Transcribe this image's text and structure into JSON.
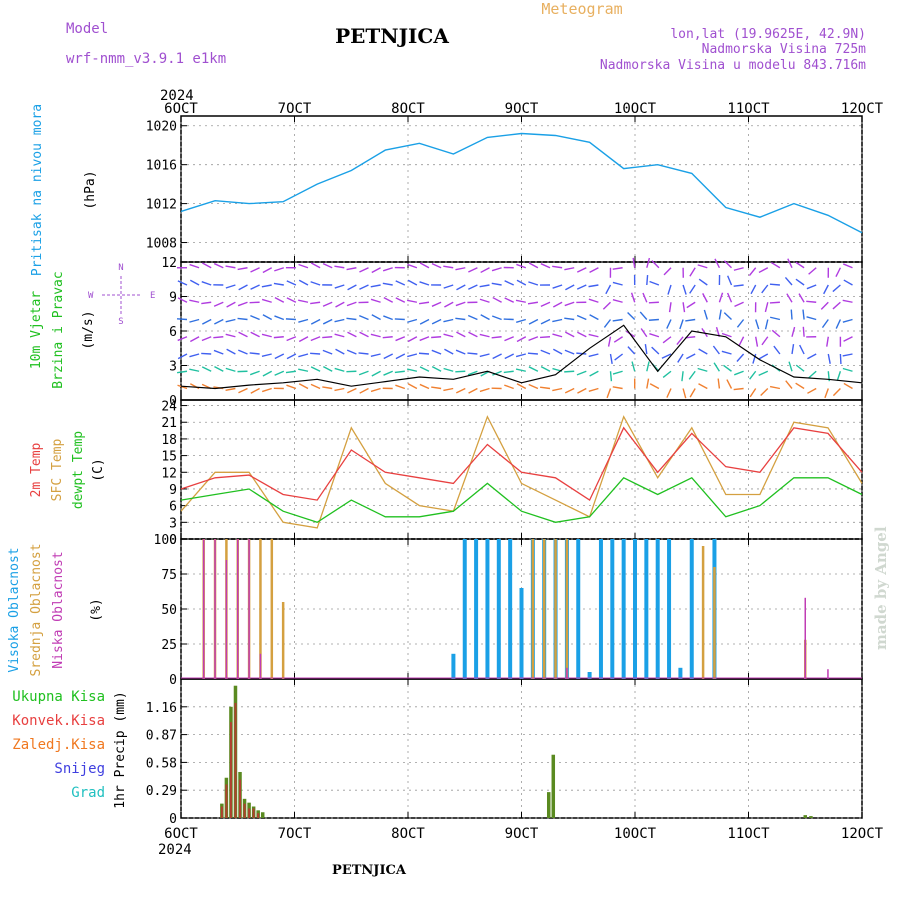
{
  "header": {
    "model_label": "Model",
    "model_name": "wrf-nmm_v3.9.1 e1km",
    "station": "PETNJICA",
    "product": "Meteogram",
    "coords": "lon,lat (19.9625E, 42.9N)",
    "elevation": "Nadmorska Visina 725m",
    "model_elevation": "Nadmorska Visina u modelu 843.716m",
    "footer_station": "PETNJICA",
    "watermark": "made by Angel"
  },
  "colors": {
    "pressure": "#1aa0e6",
    "temp2m": "#e84040",
    "sfc_temp": "#d4a040",
    "dewpoint": "#20c020",
    "high_cloud": "#1aa0e6",
    "mid_cloud": "#d4a040",
    "low_cloud": "#c03cb4",
    "total_precip": "#20c020",
    "conv_precip": "#e84040",
    "frozen_precip": "#f07820",
    "snow": "#4040e0",
    "hail": "#20c0c0",
    "wind_arrow": "#b03ce0",
    "wind_label": "#20c020",
    "header_purple": "#a050d0",
    "header_gold": "#e8b060"
  },
  "chart_data": [
    {
      "type": "line",
      "panel": "pressure",
      "ylabel": "Pritisak na nivou mora",
      "unit": "(hPa)",
      "ylim": [
        1006,
        1021
      ],
      "yticks": [
        1008,
        1012,
        1016,
        1020
      ],
      "grid": true,
      "x_start_label": "2024",
      "x_ticks": [
        "6OCT",
        "7OCT",
        "8OCT",
        "9OCT",
        "10OCT",
        "11OCT",
        "12OCT"
      ],
      "series": [
        {
          "x": [
            0,
            0.3,
            0.6,
            0.9,
            1.2,
            1.5,
            1.8,
            2.1,
            2.4,
            2.7,
            3.0,
            3.3,
            3.6,
            3.9,
            4.2,
            4.5,
            4.8,
            5.1,
            5.4,
            5.7,
            6.0
          ],
          "values": [
            1011.2,
            1012.3,
            1012.0,
            1012.2,
            1014.0,
            1015.4,
            1017.5,
            1018.2,
            1017.1,
            1018.8,
            1019.2,
            1019.0,
            1018.3,
            1015.6,
            1016.0,
            1015.1,
            1011.6,
            1010.6,
            1012.0,
            1010.8,
            1009.0
          ]
        }
      ]
    },
    {
      "type": "line",
      "panel": "wind",
      "ylabel": [
        "10m Vjetar",
        "Brzina i Pravac"
      ],
      "unit": "(m/s)",
      "compass": [
        "N",
        "W",
        "E",
        "S"
      ],
      "ylim": [
        0,
        12
      ],
      "yticks": [
        0,
        3,
        6,
        9,
        12
      ],
      "grid": true,
      "series": [
        {
          "x": [
            0,
            0.3,
            0.6,
            0.9,
            1.2,
            1.5,
            1.8,
            2.1,
            2.4,
            2.7,
            3.0,
            3.3,
            3.6,
            3.9,
            4.2,
            4.5,
            4.8,
            5.1,
            5.4,
            5.7,
            6.0
          ],
          "values": [
            1.2,
            1.0,
            1.3,
            1.5,
            1.8,
            1.2,
            1.6,
            2.0,
            1.8,
            2.5,
            1.5,
            2.2,
            4.5,
            6.5,
            2.5,
            6.0,
            5.5,
            3.5,
            2.0,
            1.8,
            1.5
          ]
        }
      ]
    },
    {
      "type": "line",
      "panel": "temperature",
      "ylabel": [
        "2m Temp",
        "SFC Temp",
        "dewpt Temp"
      ],
      "unit": "(C)",
      "ylim": [
        0,
        25
      ],
      "yticks": [
        0,
        3,
        6,
        9,
        12,
        15,
        18,
        21,
        24
      ],
      "grid": true,
      "series": [
        {
          "name": "2m Temp",
          "x": [
            0,
            0.3,
            0.6,
            0.9,
            1.2,
            1.5,
            1.8,
            2.1,
            2.4,
            2.7,
            3.0,
            3.3,
            3.6,
            3.9,
            4.2,
            4.5,
            4.8,
            5.1,
            5.4,
            5.7,
            6.0
          ],
          "values": [
            9,
            11,
            11.5,
            8,
            7,
            16,
            12,
            11,
            10,
            17,
            12,
            11,
            7,
            20,
            12,
            19,
            13,
            12,
            20,
            19,
            12
          ]
        },
        {
          "name": "SFC Temp",
          "x": [
            0,
            0.3,
            0.6,
            0.9,
            1.2,
            1.5,
            1.8,
            2.1,
            2.4,
            2.7,
            3.0,
            3.3,
            3.6,
            3.9,
            4.2,
            4.5,
            4.8,
            5.1,
            5.4,
            5.7,
            6.0
          ],
          "values": [
            5,
            12,
            12,
            3,
            2,
            20,
            10,
            6,
            5,
            22,
            10,
            7,
            4,
            22,
            11,
            20,
            8,
            8,
            21,
            20,
            10
          ]
        },
        {
          "name": "dewpt Temp",
          "x": [
            0,
            0.3,
            0.6,
            0.9,
            1.2,
            1.5,
            1.8,
            2.1,
            2.4,
            2.7,
            3.0,
            3.3,
            3.6,
            3.9,
            4.2,
            4.5,
            4.8,
            5.1,
            5.4,
            5.7,
            6.0
          ],
          "values": [
            7,
            8,
            9,
            5,
            3,
            7,
            4,
            4,
            5,
            10,
            5,
            3,
            4,
            11,
            8,
            11,
            4,
            6,
            11,
            11,
            8
          ]
        }
      ]
    },
    {
      "type": "bar",
      "panel": "clouds",
      "ylabel": [
        "Visoka Oblacnost",
        "Srednja Oblacnost",
        "Niska Oblacnost"
      ],
      "unit": "(%)",
      "ylim": [
        0,
        100
      ],
      "yticks": [
        0,
        25,
        50,
        75,
        100
      ],
      "grid": true,
      "series": [
        {
          "name": "Visoka Oblacnost",
          "x": [
            2.4,
            2.5,
            2.6,
            2.7,
            2.8,
            2.9,
            3.0,
            3.1,
            3.2,
            3.3,
            3.4,
            3.5,
            3.6,
            3.7,
            3.8,
            3.9,
            4.0,
            4.1,
            4.2,
            4.3,
            4.4,
            4.5,
            4.6,
            4.7,
            4.8,
            4.9,
            5.0
          ],
          "values": [
            18,
            100,
            100,
            100,
            100,
            100,
            65,
            100,
            100,
            100,
            100,
            100,
            5,
            100,
            100,
            100,
            100,
            100,
            100,
            100,
            8,
            100,
            0,
            100,
            0,
            0,
            0
          ]
        },
        {
          "name": "Srednja Oblacnost",
          "x": [
            0.2,
            0.3,
            0.4,
            0.5,
            0.6,
            0.7,
            0.8,
            0.9,
            3.1,
            3.2,
            3.3,
            3.4,
            4.6,
            4.7,
            5.5
          ],
          "values": [
            100,
            100,
            100,
            100,
            100,
            100,
            100,
            55,
            100,
            100,
            100,
            100,
            95,
            80,
            28
          ]
        },
        {
          "name": "Niska Oblacnost",
          "x": [
            0.2,
            0.3,
            0.4,
            0.5,
            0.6,
            0.7,
            3.4,
            5.5,
            5.7
          ],
          "values": [
            100,
            100,
            85,
            100,
            100,
            18,
            8,
            58,
            7
          ]
        }
      ]
    },
    {
      "type": "bar",
      "panel": "precipitation",
      "ylabel": "1hr Precip (mm)",
      "legend": [
        "Ukupna Kisa",
        "Konvek.Kisa",
        "Zaledj.Kisa",
        "Snijeg",
        "Grad"
      ],
      "ylim": [
        0,
        1.45
      ],
      "yticks": [
        0,
        0.29,
        0.58,
        0.87,
        1.16
      ],
      "grid": true,
      "series": [
        {
          "name": "Ukupna Kisa",
          "x": [
            0.36,
            0.4,
            0.44,
            0.48,
            0.52,
            0.56,
            0.6,
            0.64,
            0.68,
            0.72,
            3.24,
            3.28,
            5.5,
            5.55
          ],
          "values": [
            0.15,
            0.42,
            1.16,
            1.38,
            0.48,
            0.2,
            0.16,
            0.12,
            0.08,
            0.06,
            0.27,
            0.66,
            0.03,
            0.02
          ]
        },
        {
          "name": "Konvek.Kisa",
          "x": [
            0.36,
            0.4,
            0.44,
            0.48,
            0.52,
            0.56,
            0.6,
            0.64,
            0.68
          ],
          "values": [
            0.12,
            0.35,
            1.0,
            1.2,
            0.4,
            0.15,
            0.1,
            0.1,
            0.05
          ]
        }
      ]
    }
  ]
}
